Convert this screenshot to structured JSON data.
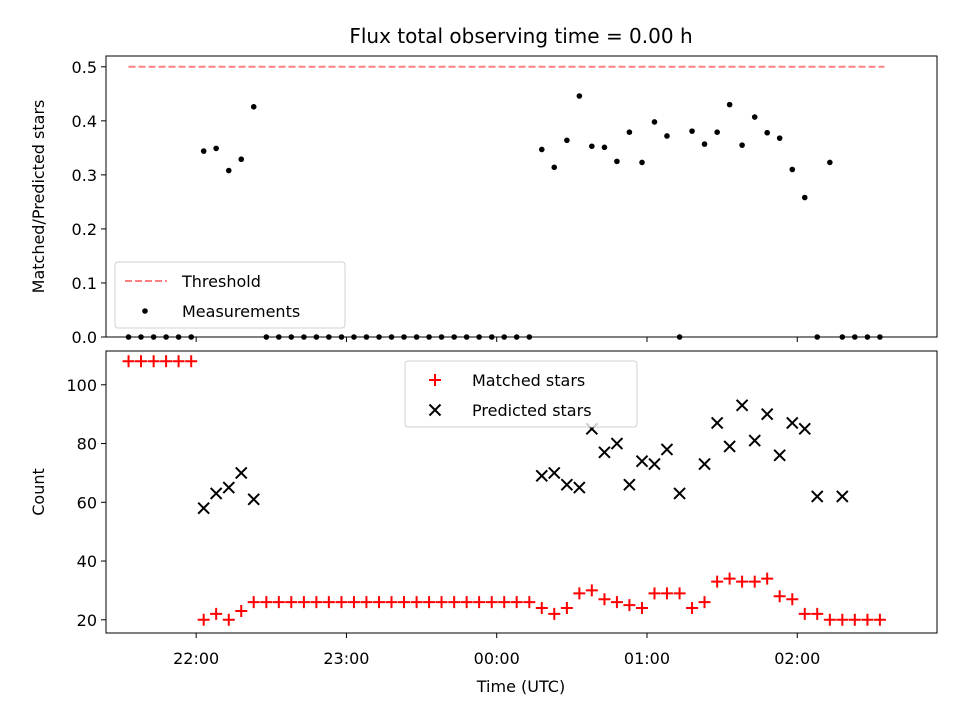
{
  "chart_data": {
    "type": "scatter",
    "title": "Flux total observing time = 0.00 h",
    "x_axis": {
      "label": "Time (UTC)",
      "ticks": [
        "22:00",
        "23:00",
        "00:00",
        "01:00",
        "02:00"
      ],
      "range_hours": [
        -2.6,
        2.93
      ]
    },
    "panels": [
      {
        "ylabel": "Matched/Predicted stars",
        "ylim": [
          0,
          0.52
        ],
        "yticks": [
          "0.0",
          "0.1",
          "0.2",
          "0.3",
          "0.4",
          "0.5"
        ],
        "legend_placement": "lower-left",
        "series": [
          {
            "name": "Threshold",
            "kind": "dashed-line",
            "color": "#ff8080",
            "x": [
              -2.45,
              2.58
            ],
            "y": [
              0.5,
              0.5
            ]
          },
          {
            "name": "Measurements",
            "kind": "dot",
            "color": "#000000",
            "x": [
              -2.45,
              -2.367,
              -2.283,
              -2.2,
              -2.117,
              -2.033,
              -1.95,
              -1.867,
              -1.783,
              -1.7,
              -1.617,
              -1.533,
              -1.45,
              -1.367,
              -1.283,
              -1.2,
              -1.117,
              -1.033,
              -0.95,
              -0.867,
              -0.783,
              -0.7,
              -0.617,
              -0.533,
              -0.45,
              -0.367,
              -0.283,
              -0.2,
              -0.117,
              -0.033,
              0.05,
              0.133,
              0.217,
              0.3,
              0.383,
              0.467,
              0.55,
              0.633,
              0.717,
              0.8,
              0.883,
              0.967,
              1.05,
              1.133,
              1.217,
              1.3,
              1.383,
              1.467,
              1.55,
              1.633,
              1.717,
              1.8,
              1.883,
              1.967,
              2.05,
              2.133,
              2.217,
              2.3,
              2.383,
              2.467,
              2.55
            ],
            "y": [
              0,
              0,
              0,
              0,
              0,
              0,
              0.344,
              0.349,
              0.308,
              0.329,
              0.426,
              0,
              0,
              0,
              0,
              0,
              0,
              0,
              0,
              0,
              0,
              0,
              0,
              0,
              0,
              0,
              0,
              0,
              0,
              0,
              0,
              0,
              0,
              0.347,
              0.314,
              0.364,
              0.446,
              0.353,
              0.351,
              0.325,
              0.379,
              0.323,
              0.398,
              0.372,
              0,
              0.381,
              0.357,
              0.379,
              0.43,
              0.355,
              0.407,
              0.378,
              0.368,
              0.31,
              0.258,
              0,
              0.323,
              0,
              0,
              0,
              0
            ]
          }
        ]
      },
      {
        "ylabel": "Count",
        "ylim": [
          15.5,
          111.5
        ],
        "yticks": [
          "20",
          "40",
          "60",
          "80",
          "100"
        ],
        "legend_placement": "upper-center",
        "series": [
          {
            "name": "Matched stars",
            "kind": "plus",
            "color": "#ff0000",
            "x": [
              -2.45,
              -2.367,
              -2.283,
              -2.2,
              -2.117,
              -2.033,
              -1.95,
              -1.867,
              -1.783,
              -1.7,
              -1.617,
              -1.533,
              -1.45,
              -1.367,
              -1.283,
              -1.2,
              -1.117,
              -1.033,
              -0.95,
              -0.867,
              -0.783,
              -0.7,
              -0.617,
              -0.533,
              -0.45,
              -0.367,
              -0.283,
              -0.2,
              -0.117,
              -0.033,
              0.05,
              0.133,
              0.217,
              0.3,
              0.383,
              0.467,
              0.55,
              0.633,
              0.717,
              0.8,
              0.883,
              0.967,
              1.05,
              1.133,
              1.217,
              1.3,
              1.383,
              1.467,
              1.55,
              1.633,
              1.717,
              1.8,
              1.883,
              1.967,
              2.05,
              2.133,
              2.217,
              2.3,
              2.383,
              2.467,
              2.55
            ],
            "y": [
              108,
              108,
              108,
              108,
              108,
              108,
              20,
              22,
              20,
              23,
              26,
              26,
              26,
              26,
              26,
              26,
              26,
              26,
              26,
              26,
              26,
              26,
              26,
              26,
              26,
              26,
              26,
              26,
              26,
              26,
              26,
              26,
              26,
              24,
              22,
              24,
              29,
              30,
              27,
              26,
              25,
              24,
              29,
              29,
              29,
              24,
              26,
              33,
              34,
              33,
              33,
              34,
              28,
              27,
              22,
              22,
              20,
              20,
              20,
              20,
              20
            ]
          },
          {
            "name": "Predicted stars",
            "kind": "x",
            "color": "#000000",
            "x": [
              -1.95,
              -1.867,
              -1.783,
              -1.7,
              -1.617,
              0.3,
              0.383,
              0.467,
              0.55,
              0.633,
              0.717,
              0.8,
              0.883,
              0.967,
              1.05,
              1.133,
              1.217,
              1.383,
              1.467,
              1.55,
              1.633,
              1.717,
              1.8,
              1.883,
              1.967,
              2.05,
              2.133,
              2.3
            ],
            "y": [
              58,
              63,
              65,
              70,
              61,
              69,
              70,
              66,
              65,
              85,
              77,
              80,
              66,
              74,
              73,
              78,
              63,
              73,
              87,
              79,
              93,
              81,
              90,
              76,
              87,
              85,
              62,
              62
            ]
          }
        ]
      }
    ]
  }
}
